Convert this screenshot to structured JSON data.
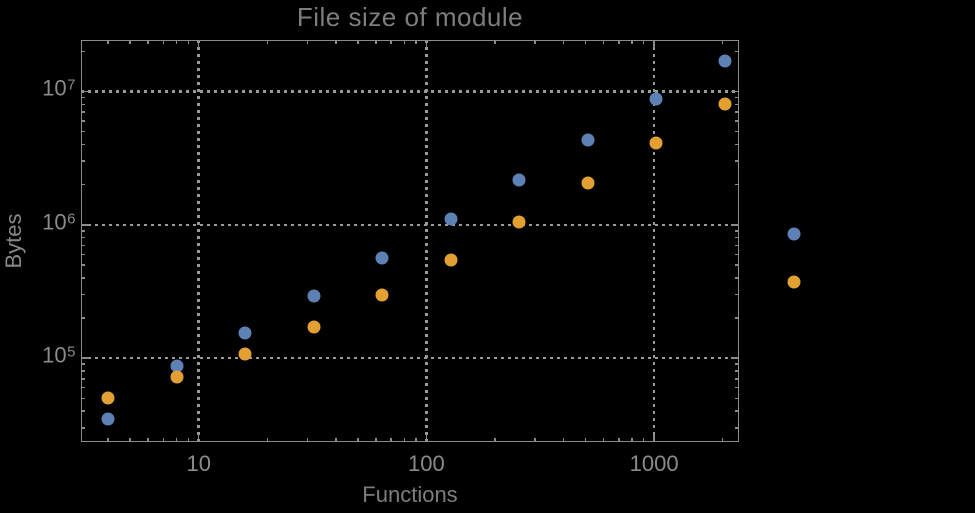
{
  "colors": {
    "background": "#000000",
    "frame": "#8a8a8a",
    "grid": "#9a9a9a",
    "tick_label": "#8b8b8b",
    "title": "#7d7d7d",
    "axis_label": "#878787",
    "series_blue": "#5e81b5",
    "series_orange": "#e2a033"
  },
  "chart_data": {
    "type": "scatter",
    "title": "File size of module",
    "xlabel": "Functions",
    "ylabel": "Bytes",
    "x_scale": "log",
    "y_scale": "log",
    "grid": true,
    "grid_style": "dotted",
    "legend": "none",
    "xlim": [
      3.04,
      2360
    ],
    "ylim": [
      23500,
      24300000
    ],
    "x": [
      4,
      8,
      16,
      32,
      64,
      128,
      256,
      512,
      1024,
      2048,
      4096
    ],
    "series": [
      {
        "name": "blue",
        "color": "#5e81b5",
        "values": [
          35000,
          88000,
          155000,
          294000,
          566000,
          1110000,
          2170000,
          4330000,
          8790000,
          16900000,
          860000
        ]
      },
      {
        "name": "orange",
        "color": "#e2a033",
        "values": [
          50000,
          72000,
          108000,
          172000,
          299000,
          547000,
          1050000,
          2060000,
          4110000,
          8060000,
          374000
        ]
      }
    ],
    "x_ticks": [
      {
        "value": 10,
        "label": "10"
      },
      {
        "value": 100,
        "label": "100"
      },
      {
        "value": 1000,
        "label": "1000"
      }
    ],
    "y_ticks": [
      {
        "value": 100000,
        "base": "10",
        "exp": "5"
      },
      {
        "value": 1000000,
        "base": "10",
        "exp": "6"
      },
      {
        "value": 10000000,
        "base": "10",
        "exp": "7"
      }
    ]
  }
}
